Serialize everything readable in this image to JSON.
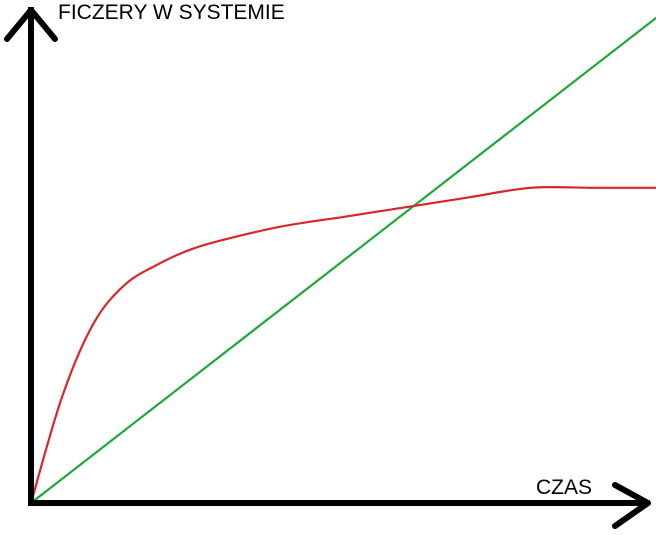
{
  "chart_data": {
    "type": "line",
    "title": "",
    "xlabel": "CZAS",
    "ylabel": "FICZERY W SYSTEMIE",
    "xlim": [
      0,
      100
    ],
    "ylim": [
      0,
      100
    ],
    "grid": false,
    "legend": "none",
    "ticks": false,
    "series": [
      {
        "color": "#1fa83a",
        "x": [
          0,
          100
        ],
        "y": [
          0,
          100
        ]
      },
      {
        "color": "#d9262c",
        "x": [
          0,
          5,
          10,
          15,
          20,
          25,
          30,
          40,
          50,
          60,
          70,
          80,
          90,
          100
        ],
        "y": [
          0,
          22,
          37,
          45,
          49,
          52,
          54,
          57,
          59,
          61,
          63,
          65,
          65,
          65
        ]
      }
    ]
  }
}
